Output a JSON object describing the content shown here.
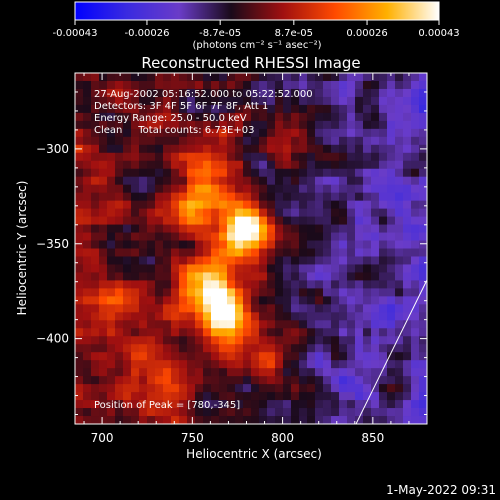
{
  "chart_data": {
    "type": "heatmap",
    "title": "Reconstructed RHESSI Image",
    "xlabel": "Heliocentric X (arcsec)",
    "ylabel": "Heliocentric Y (arcsec)",
    "xlim": [
      685,
      880
    ],
    "ylim": [
      -445,
      -260
    ],
    "x_ticks": [
      700,
      750,
      800,
      850
    ],
    "y_ticks": [
      -300,
      -350,
      -400
    ],
    "colorbar": {
      "unit_label": "(photons cm⁻² s⁻¹ asec⁻²)",
      "range": [
        -0.00043,
        0.00043
      ],
      "tick_values": [
        -0.00043,
        -0.00026,
        -8.7e-05,
        8.7e-05,
        0.00026,
        0.00043
      ],
      "tick_labels": [
        "-0.00043",
        "-0.00026",
        "-8.7e-05",
        "8.7e-05",
        "0.00026",
        "0.00043"
      ],
      "colors": [
        "#0000ff",
        "#3a2ae0",
        "#6a3cc8",
        "#1a0a1a",
        "#a01010",
        "#ff4a00",
        "#ffb000",
        "#ffffff"
      ]
    },
    "annotations": [
      "27-Aug-2002 05:16:52.000 to 05:22:52.000",
      "Detectors: 3F 4F 5F 6F 7F 8F, Att 1",
      "Energy Range: 25.0 - 50.0 keV",
      "Clean     Total counts: 6.73E+03"
    ],
    "peak_label": "Position of Peak = [780,-345]",
    "sources": [
      {
        "x": 778,
        "y": -345,
        "amplitude": 1.0
      },
      {
        "x": 768,
        "y": -387,
        "amplitude": 0.9
      },
      {
        "x": 755,
        "y": -372,
        "amplitude": 0.55
      },
      {
        "x": 762,
        "y": -314,
        "amplitude": 0.45
      },
      {
        "x": 748,
        "y": -330,
        "amplitude": 0.4
      },
      {
        "x": 792,
        "y": -410,
        "amplitude": 0.35
      },
      {
        "x": 712,
        "y": -380,
        "amplitude": 0.3
      },
      {
        "x": 735,
        "y": -420,
        "amplitude": 0.35
      },
      {
        "x": 805,
        "y": -298,
        "amplitude": 0.25
      }
    ]
  },
  "footer": {
    "date": "1-May-2022 09:31"
  }
}
